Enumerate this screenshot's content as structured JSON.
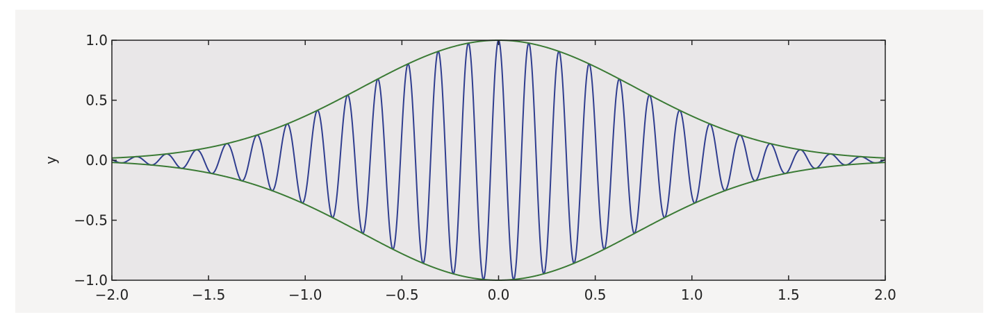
{
  "chart_data": {
    "type": "line",
    "title": "",
    "xlabel": "",
    "ylabel": "y",
    "xlim": [
      -2.0,
      2.0
    ],
    "ylim": [
      -1.0,
      1.0
    ],
    "xticks": [
      -2.0,
      -1.5,
      -1.0,
      -0.5,
      0.0,
      0.5,
      1.0,
      1.5,
      2.0
    ],
    "yticks": [
      -1.0,
      -0.5,
      0.0,
      0.5,
      1.0
    ],
    "xtick_labels": [
      "−2.0",
      "−1.5",
      "−1.0",
      "−0.5",
      "0.0",
      "0.5",
      "1.0",
      "1.5",
      "2.0"
    ],
    "ytick_labels": [
      "−1.0",
      "−0.5",
      "0.0",
      "0.5",
      "1.0"
    ],
    "grid": false,
    "legend": "none",
    "series": [
      {
        "color": "#2f3d8f",
        "function": "y = exp(-x^2) * cos(2*pi*f*x)",
        "frequency": 6.4,
        "envelope_width": 1.0,
        "x_range": [
          -2.0,
          2.0
        ]
      },
      {
        "color": "#3a7a34",
        "function": "y = exp(-x^2)",
        "x_range": [
          -2.0,
          2.0
        ]
      },
      {
        "color": "#3a7a34",
        "function": "y = -exp(-x^2)",
        "x_range": [
          -2.0,
          2.0
        ]
      }
    ],
    "plot_background": "#e9e7e8",
    "figure_background": "#f5f4f3"
  }
}
